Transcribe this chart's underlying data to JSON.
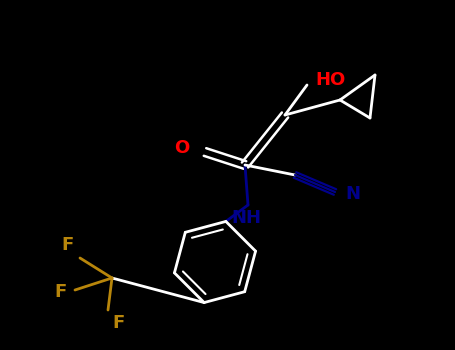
{
  "background_color": "#000000",
  "white": "#ffffff",
  "red": "#ff0000",
  "blue": "#00008b",
  "gold": "#b8860b",
  "figsize": [
    4.55,
    3.5
  ],
  "dpi": 100,
  "xlim": [
    0.0,
    455.0
  ],
  "ylim": [
    350.0,
    0.0
  ]
}
